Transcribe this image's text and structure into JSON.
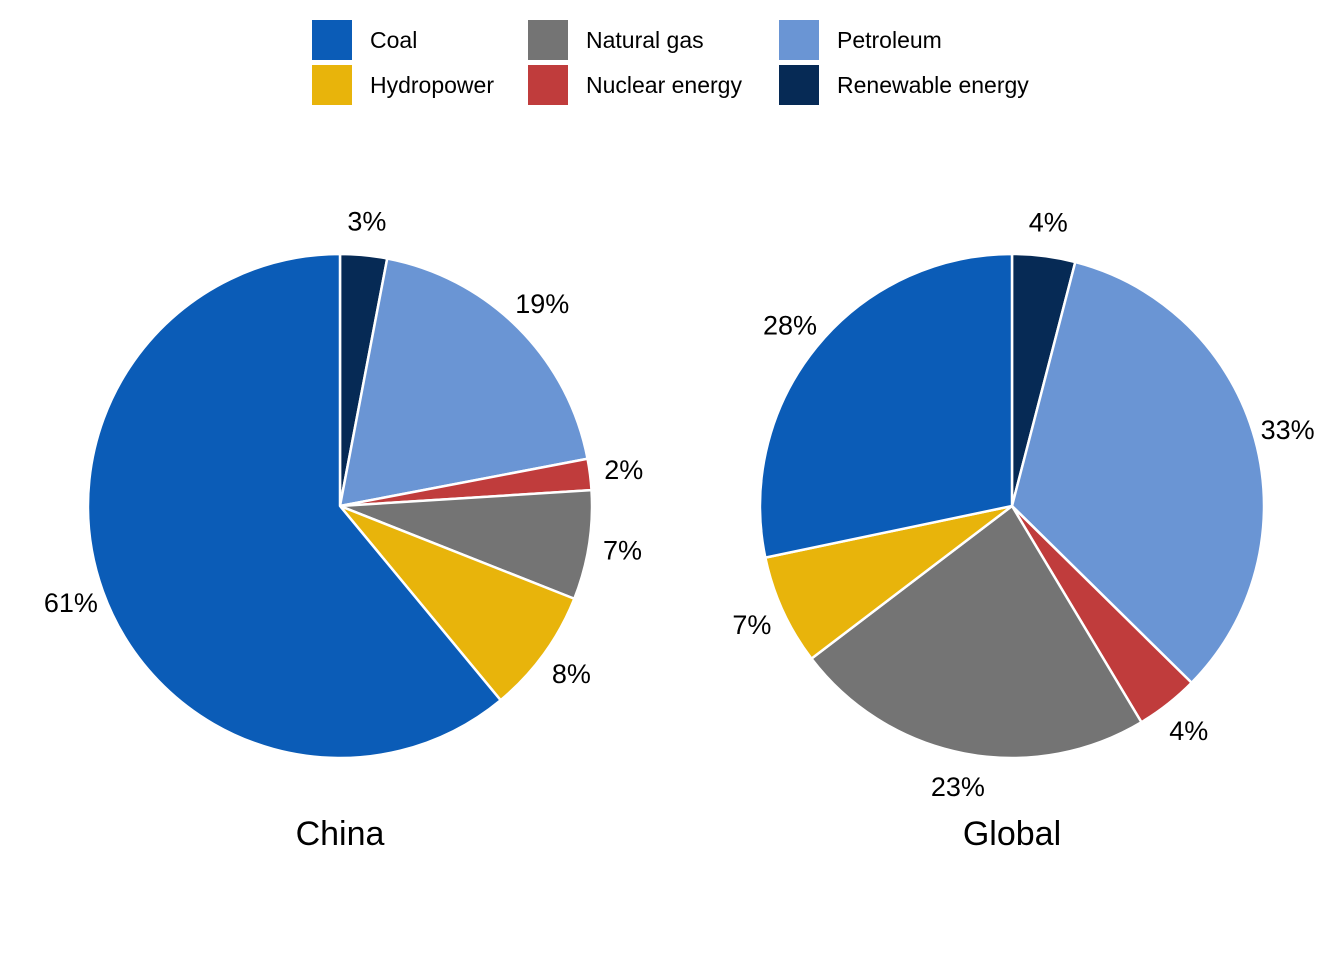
{
  "legend": {
    "entries": [
      {
        "name": "Coal",
        "color": "#0B5CB7"
      },
      {
        "name": "Natural gas",
        "color": "#747474"
      },
      {
        "name": "Petroleum",
        "color": "#6A95D4"
      },
      {
        "name": "Hydropower",
        "color": "#E8B40B"
      },
      {
        "name": "Nuclear energy",
        "color": "#C03C3C"
      },
      {
        "name": "Renewable energy",
        "color": "#062A55"
      }
    ]
  },
  "chart_data": [
    {
      "type": "pie",
      "title": "China",
      "slices": [
        {
          "name": "Renewable energy",
          "value": 3,
          "label": "3%"
        },
        {
          "name": "Petroleum",
          "value": 19,
          "label": "19%"
        },
        {
          "name": "Nuclear energy",
          "value": 2,
          "label": "2%"
        },
        {
          "name": "Natural gas",
          "value": 7,
          "label": "7%"
        },
        {
          "name": "Hydropower",
          "value": 8,
          "label": "8%"
        },
        {
          "name": "Coal",
          "value": 61,
          "label": "61%"
        }
      ]
    },
    {
      "type": "pie",
      "title": "Global",
      "slices": [
        {
          "name": "Renewable energy",
          "value": 4,
          "label": "4%"
        },
        {
          "name": "Petroleum",
          "value": 33,
          "label": "33%"
        },
        {
          "name": "Nuclear energy",
          "value": 4,
          "label": "4%"
        },
        {
          "name": "Natural gas",
          "value": 23,
          "label": "23%"
        },
        {
          "name": "Hydropower",
          "value": 7,
          "label": "7%"
        },
        {
          "name": "Coal",
          "value": 28,
          "label": "28%"
        }
      ]
    }
  ]
}
